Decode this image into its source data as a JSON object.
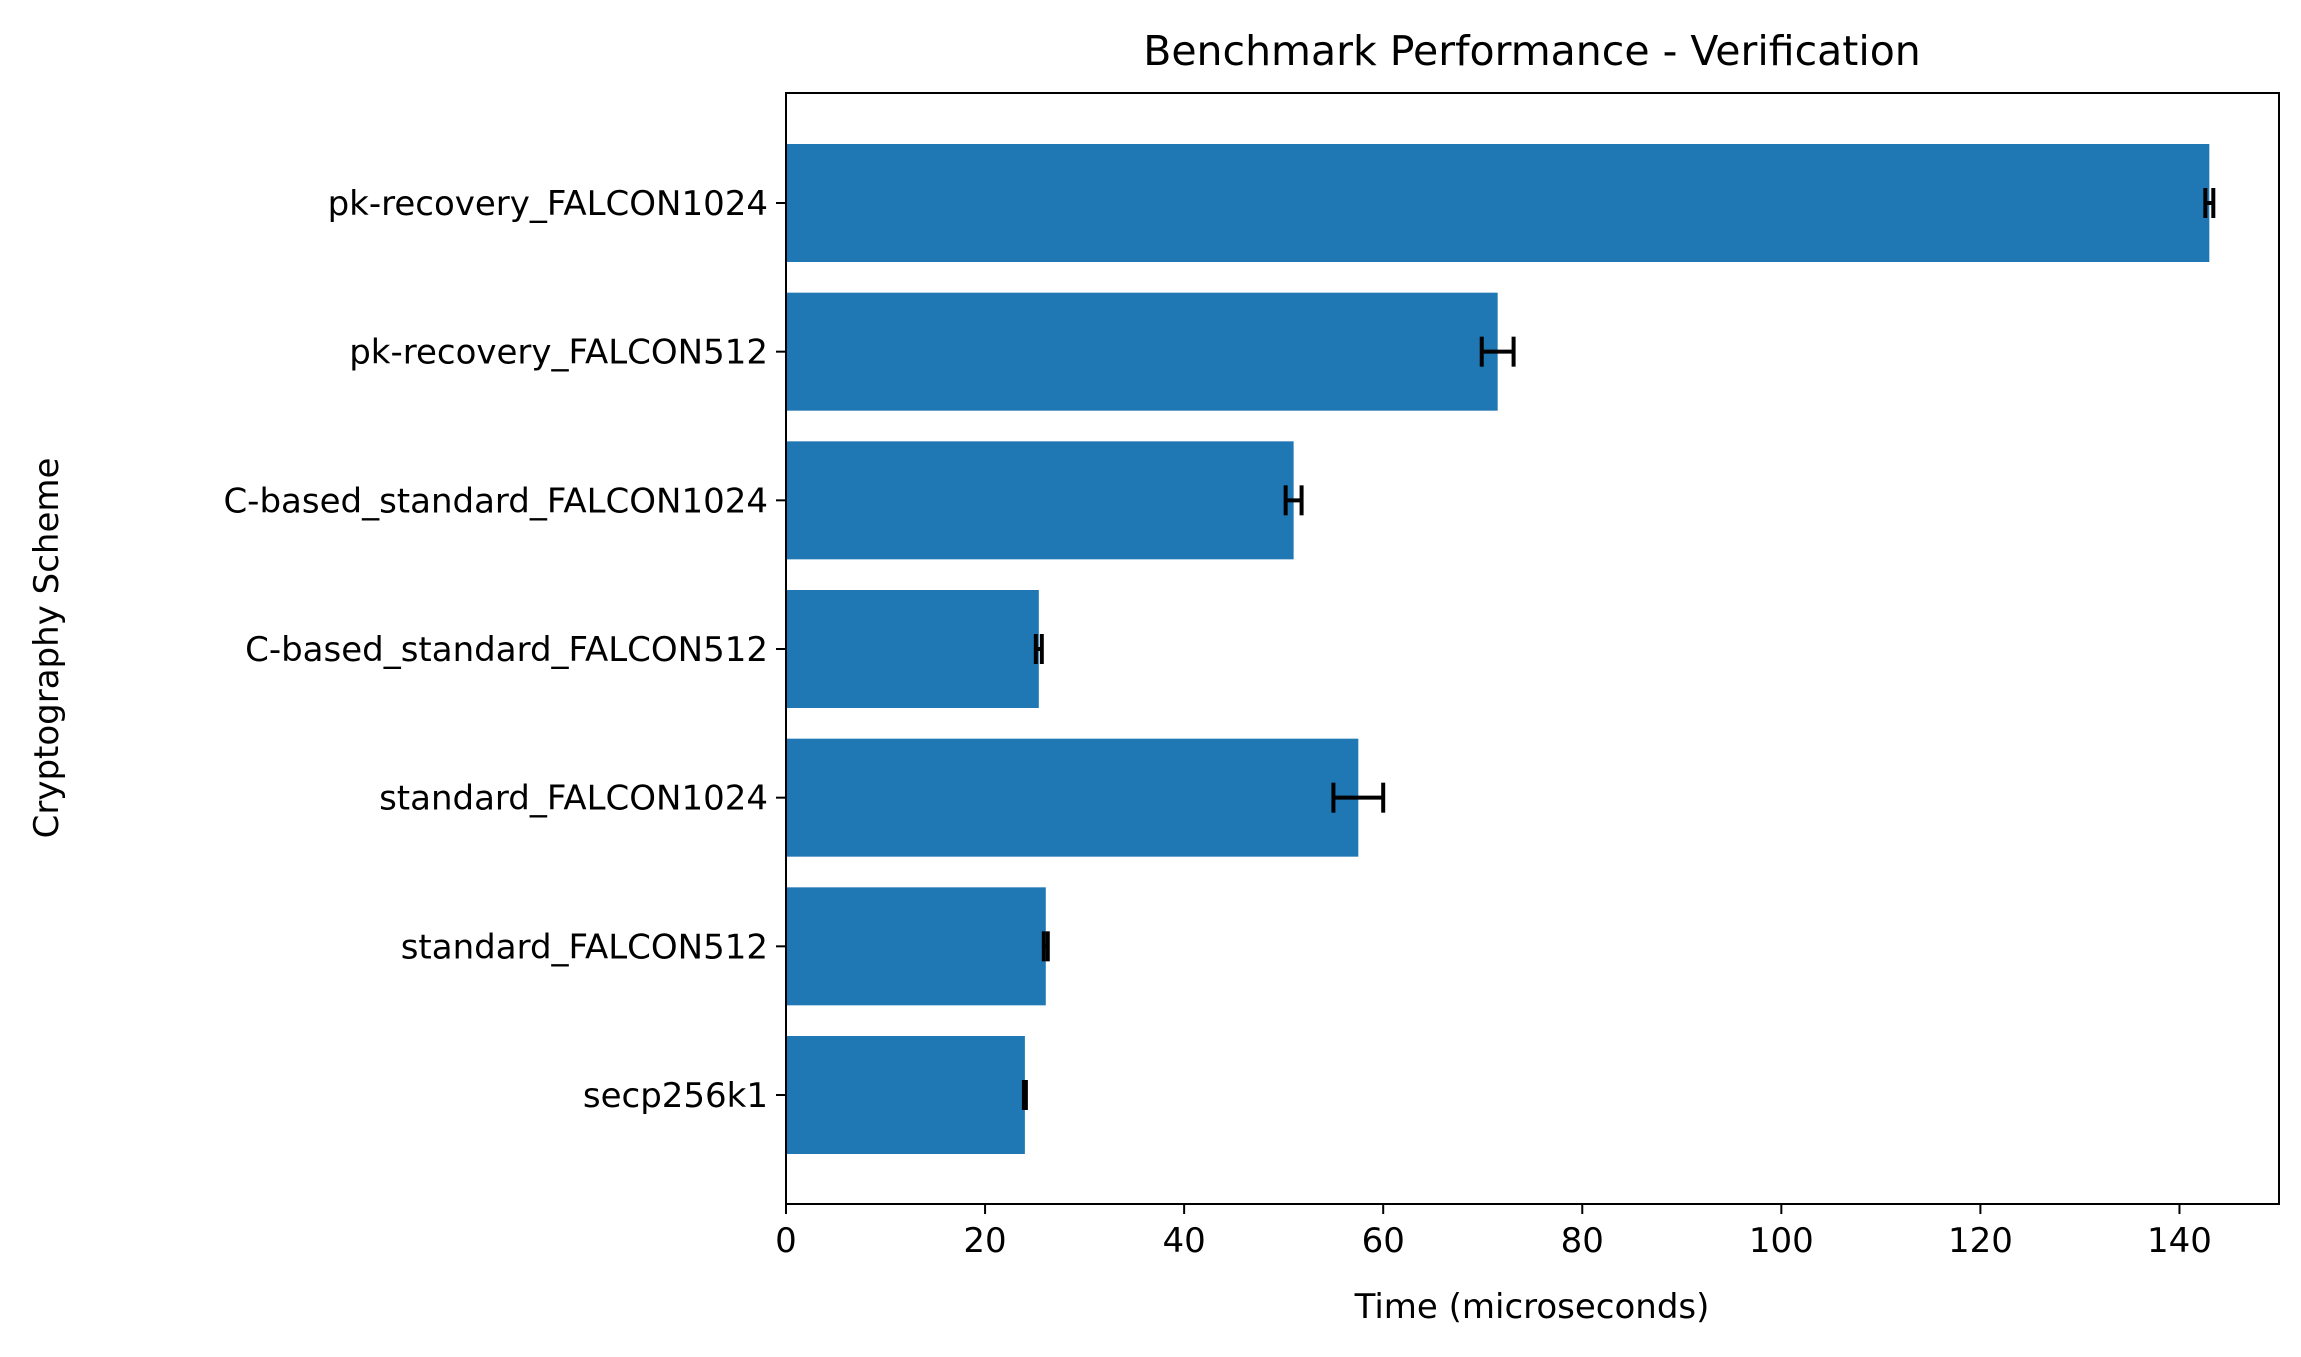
{
  "chart_data": {
    "type": "bar",
    "orientation": "horizontal",
    "title": "Benchmark Performance - Verification",
    "xlabel": "Time (microseconds)",
    "ylabel": "Cryptography Scheme",
    "xlim": [
      0,
      150
    ],
    "x_ticks": [
      0,
      20,
      40,
      60,
      80,
      100,
      120,
      140
    ],
    "x_tick_labels": [
      "0",
      "20",
      "40",
      "60",
      "80",
      "100",
      "120",
      "140"
    ],
    "categories": [
      "pk-recovery_FALCON1024",
      "pk-recovery_FALCON512",
      "C-based_standard_FALCON1024",
      "C-based_standard_FALCON512",
      "standard_FALCON1024",
      "standard_FALCON512",
      "secp256k1"
    ],
    "values": [
      143.0,
      71.5,
      51.0,
      25.4,
      57.5,
      26.1,
      24.0
    ],
    "errors": [
      0.4,
      1.6,
      0.8,
      0.3,
      2.5,
      0.2,
      0.1
    ],
    "bar_color": "#1f77b4",
    "error_color": "#000000",
    "grid": false,
    "legend": "none"
  }
}
